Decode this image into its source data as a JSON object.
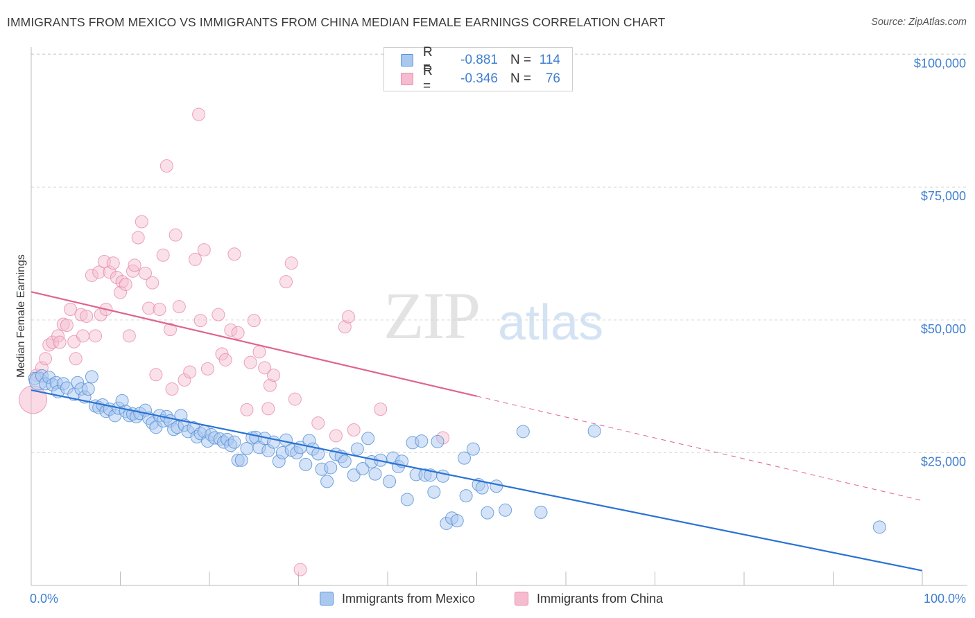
{
  "title": "IMMIGRANTS FROM MEXICO VS IMMIGRANTS FROM CHINA MEDIAN FEMALE EARNINGS CORRELATION CHART",
  "source": "Source: ZipAtlas.com",
  "watermark": {
    "zip": "ZIP",
    "atlas": "atlas"
  },
  "legend": {
    "mexico": {
      "r_label": "R =",
      "r_value": "-0.881",
      "n_label": "N =",
      "n_value": "114"
    },
    "china": {
      "r_label": "R =",
      "r_value": "-0.346",
      "n_label": "N =",
      "n_value": "76"
    }
  },
  "bottom_legend": {
    "mexico": "Immigrants from Mexico",
    "china": "Immigrants from China"
  },
  "colors": {
    "mexico_fill": "#a9c8f0",
    "mexico_stroke": "#5b93d8",
    "mexico_line": "#2a72d4",
    "china_fill": "#f5bccf",
    "china_stroke": "#e88aab",
    "china_line": "#e0648c",
    "grid": "#d8d8d8",
    "tick_text": "#3f7fd0"
  },
  "chart_data": {
    "type": "scatter",
    "title": "IMMIGRANTS FROM MEXICO VS IMMIGRANTS FROM CHINA MEDIAN FEMALE EARNINGS CORRELATION CHART",
    "xlabel": "",
    "ylabel": "Median Female Earnings",
    "xlim": [
      0,
      100
    ],
    "ylim": [
      0,
      105000
    ],
    "x_tick_labels": [
      "0.0%",
      "100.0%"
    ],
    "y_ticks": [
      25000,
      50000,
      75000,
      100000
    ],
    "y_tick_labels": [
      "$25,000",
      "$50,000",
      "$75,000",
      "$100,000"
    ],
    "grid": true,
    "legend_position": "top-center",
    "series": [
      {
        "name": "Immigrants from Mexico",
        "r": -0.881,
        "n": 114,
        "trend": {
          "x0": 0,
          "y0": 36800,
          "x1": 100,
          "y1": 2800,
          "dashed_from": null
        },
        "points": [
          [
            0.4,
            39000
          ],
          [
            0.8,
            38500
          ],
          [
            1.2,
            39500
          ],
          [
            1.6,
            38000
          ],
          [
            2,
            39200
          ],
          [
            2.4,
            37800
          ],
          [
            2.8,
            38200
          ],
          [
            3,
            36500
          ],
          [
            3.6,
            38000
          ],
          [
            4,
            37200
          ],
          [
            4.8,
            36000
          ],
          [
            5.2,
            38200
          ],
          [
            5.6,
            37000
          ],
          [
            6,
            35500
          ],
          [
            6.4,
            37000
          ],
          [
            6.8,
            39300
          ],
          [
            7.2,
            33800
          ],
          [
            7.6,
            33500
          ],
          [
            8,
            34000
          ],
          [
            8.4,
            32800
          ],
          [
            8.8,
            33200
          ],
          [
            9.4,
            32000
          ],
          [
            9.8,
            33400
          ],
          [
            10.2,
            34800
          ],
          [
            10.6,
            32800
          ],
          [
            11,
            32000
          ],
          [
            11.4,
            32300
          ],
          [
            11.8,
            31800
          ],
          [
            12.2,
            32400
          ],
          [
            12.8,
            33000
          ],
          [
            13.2,
            31500
          ],
          [
            13.6,
            30600
          ],
          [
            14,
            29800
          ],
          [
            14.4,
            32000
          ],
          [
            14.8,
            31000
          ],
          [
            15.2,
            31800
          ],
          [
            15.6,
            31000
          ],
          [
            16,
            29400
          ],
          [
            16.4,
            29800
          ],
          [
            16.8,
            32000
          ],
          [
            17.2,
            30200
          ],
          [
            17.6,
            29000
          ],
          [
            18.2,
            29700
          ],
          [
            18.6,
            28000
          ],
          [
            19,
            28600
          ],
          [
            19.4,
            29000
          ],
          [
            19.8,
            27200
          ],
          [
            20.2,
            28400
          ],
          [
            20.6,
            27800
          ],
          [
            21.2,
            27600
          ],
          [
            21.6,
            27000
          ],
          [
            22,
            27500
          ],
          [
            22.4,
            26400
          ],
          [
            22.8,
            27000
          ],
          [
            23.2,
            23600
          ],
          [
            23.6,
            23600
          ],
          [
            24.2,
            25800
          ],
          [
            24.8,
            27800
          ],
          [
            25.2,
            27900
          ],
          [
            25.6,
            26000
          ],
          [
            26.2,
            27700
          ],
          [
            26.6,
            25400
          ],
          [
            27.2,
            27000
          ],
          [
            27.8,
            23400
          ],
          [
            28.2,
            25000
          ],
          [
            28.6,
            27400
          ],
          [
            29.2,
            25500
          ],
          [
            29.8,
            25000
          ],
          [
            30.2,
            26000
          ],
          [
            30.8,
            22800
          ],
          [
            31.2,
            27300
          ],
          [
            31.6,
            25700
          ],
          [
            32.2,
            24800
          ],
          [
            32.6,
            21900
          ],
          [
            33.2,
            19600
          ],
          [
            33.6,
            22200
          ],
          [
            34.2,
            24700
          ],
          [
            34.8,
            24300
          ],
          [
            35.2,
            23400
          ],
          [
            36.2,
            20800
          ],
          [
            36.6,
            25700
          ],
          [
            37.2,
            22000
          ],
          [
            37.8,
            27700
          ],
          [
            38.2,
            23300
          ],
          [
            38.6,
            21000
          ],
          [
            39.2,
            23600
          ],
          [
            40.2,
            19600
          ],
          [
            40.6,
            24000
          ],
          [
            41.2,
            22400
          ],
          [
            41.6,
            23400
          ],
          [
            42.2,
            16200
          ],
          [
            42.8,
            26900
          ],
          [
            43.2,
            20900
          ],
          [
            43.8,
            27200
          ],
          [
            44.2,
            20800
          ],
          [
            44.8,
            20800
          ],
          [
            45.2,
            17600
          ],
          [
            45.6,
            27100
          ],
          [
            46.2,
            20600
          ],
          [
            46.6,
            11700
          ],
          [
            47.2,
            12700
          ],
          [
            47.8,
            12200
          ],
          [
            48.6,
            24000
          ],
          [
            48.8,
            16900
          ],
          [
            49.6,
            25700
          ],
          [
            50.2,
            19000
          ],
          [
            50.6,
            18400
          ],
          [
            51.2,
            13700
          ],
          [
            52.2,
            18700
          ],
          [
            53.2,
            14200
          ],
          [
            55.2,
            29000
          ],
          [
            57.2,
            13800
          ],
          [
            63.2,
            29100
          ],
          [
            95.2,
            11000
          ]
        ]
      },
      {
        "name": "Immigrants from China",
        "r": -0.346,
        "n": 76,
        "trend": {
          "x0": 0,
          "y0": 55300,
          "x1": 100,
          "y1": 16000,
          "dashed_from": 50
        },
        "points": [
          [
            0.2,
            35000
          ],
          [
            0.6,
            39600
          ],
          [
            1.2,
            41000
          ],
          [
            1.6,
            42700
          ],
          [
            2,
            45300
          ],
          [
            2.4,
            45800
          ],
          [
            3,
            47000
          ],
          [
            3.2,
            45800
          ],
          [
            3.6,
            49200
          ],
          [
            4,
            49000
          ],
          [
            4.4,
            52000
          ],
          [
            4.8,
            45900
          ],
          [
            5,
            42700
          ],
          [
            5.6,
            51000
          ],
          [
            5.8,
            47000
          ],
          [
            6.2,
            50700
          ],
          [
            6.8,
            58400
          ],
          [
            7.2,
            47000
          ],
          [
            7.6,
            59000
          ],
          [
            7.8,
            51000
          ],
          [
            8.2,
            61000
          ],
          [
            8.4,
            52000
          ],
          [
            8.8,
            59000
          ],
          [
            9.2,
            60700
          ],
          [
            9.6,
            58000
          ],
          [
            10,
            55200
          ],
          [
            10.2,
            57200
          ],
          [
            10.6,
            56700
          ],
          [
            11,
            47000
          ],
          [
            11.4,
            59200
          ],
          [
            11.6,
            60300
          ],
          [
            12,
            65500
          ],
          [
            12.4,
            68500
          ],
          [
            12.8,
            58800
          ],
          [
            13.2,
            52200
          ],
          [
            13.6,
            57000
          ],
          [
            14,
            39700
          ],
          [
            14.4,
            52000
          ],
          [
            14.8,
            62200
          ],
          [
            15.2,
            79000
          ],
          [
            15.6,
            48200
          ],
          [
            15.8,
            37000
          ],
          [
            16.2,
            66000
          ],
          [
            16.6,
            52500
          ],
          [
            17.2,
            38700
          ],
          [
            17.8,
            40200
          ],
          [
            18.4,
            61400
          ],
          [
            18.8,
            88700
          ],
          [
            19,
            49900
          ],
          [
            19.4,
            63200
          ],
          [
            19.8,
            40800
          ],
          [
            21,
            51000
          ],
          [
            21.4,
            43600
          ],
          [
            21.8,
            42500
          ],
          [
            22.4,
            48100
          ],
          [
            22.8,
            62400
          ],
          [
            23.2,
            47600
          ],
          [
            24.2,
            33100
          ],
          [
            24.6,
            42000
          ],
          [
            25,
            49900
          ],
          [
            25.6,
            44000
          ],
          [
            26.2,
            41000
          ],
          [
            26.6,
            33300
          ],
          [
            26.8,
            37700
          ],
          [
            27.2,
            39600
          ],
          [
            28.6,
            57200
          ],
          [
            29.2,
            60700
          ],
          [
            29.6,
            35100
          ],
          [
            30.2,
            3000
          ],
          [
            32.2,
            30600
          ],
          [
            34.2,
            28200
          ],
          [
            35.2,
            48700
          ],
          [
            35.6,
            50600
          ],
          [
            36.2,
            29300
          ],
          [
            39.2,
            33200
          ],
          [
            46.2,
            27800
          ]
        ]
      }
    ]
  }
}
